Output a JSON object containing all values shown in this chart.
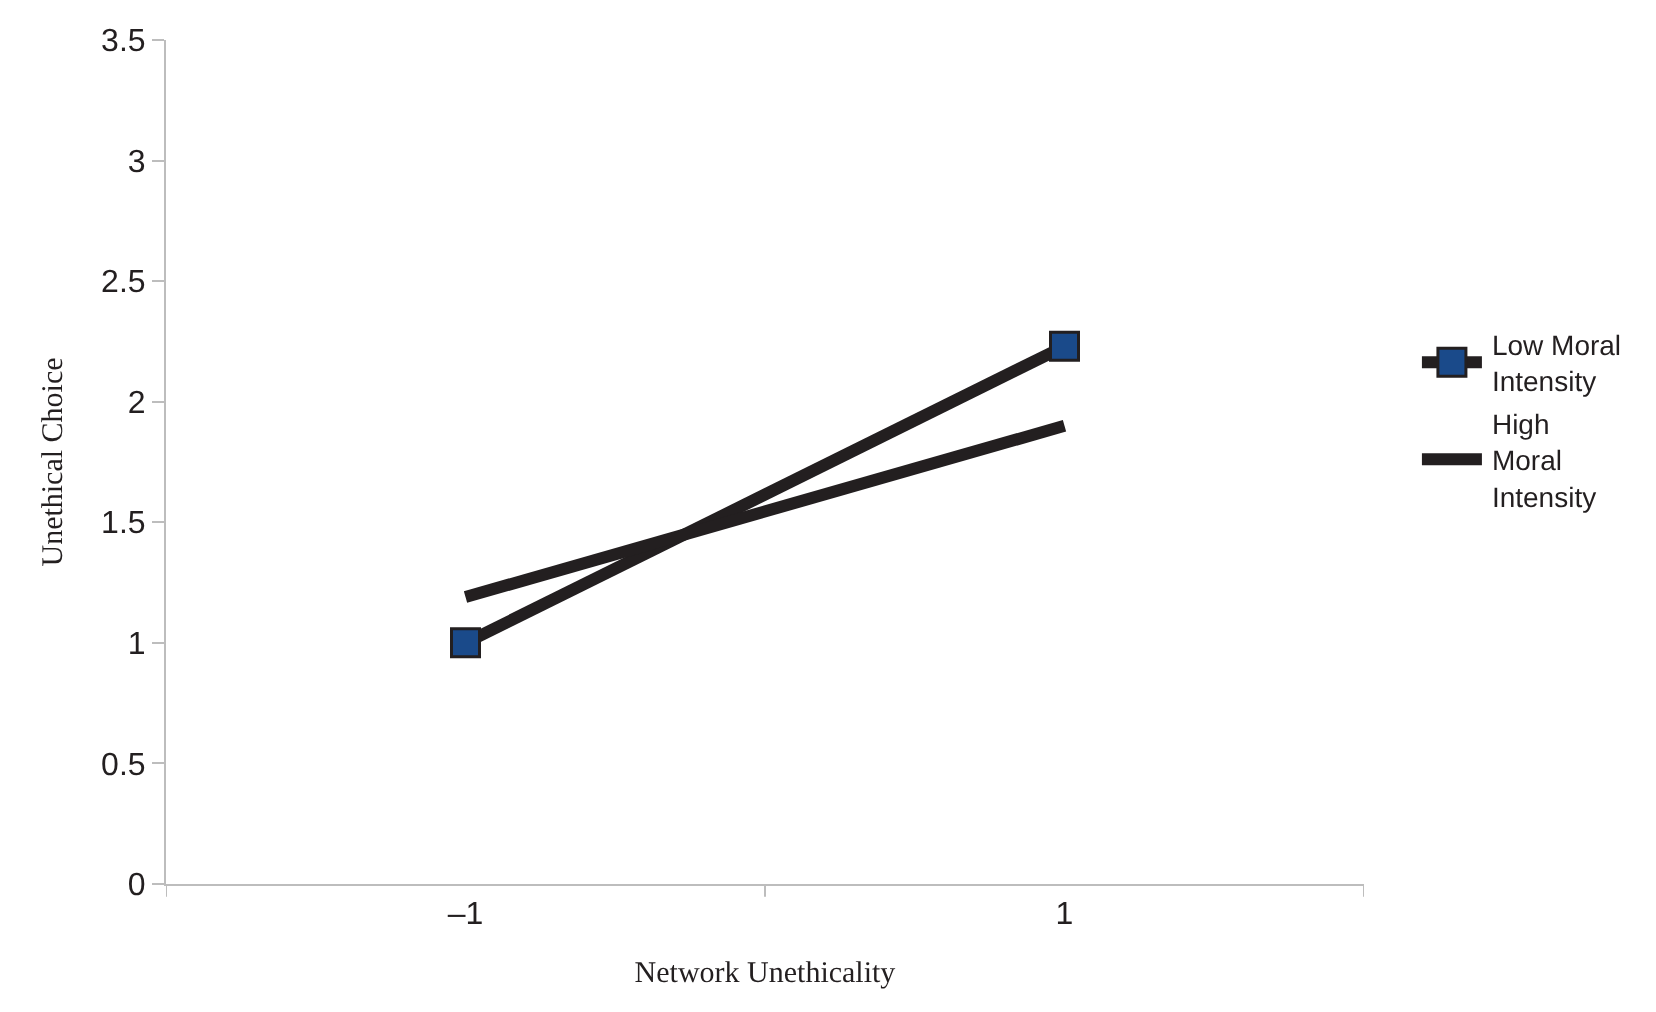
{
  "chart_data": {
    "type": "line",
    "xlabel": "Network Unethicality",
    "ylabel": "Unethical Choice",
    "categories": [
      "–1",
      "1"
    ],
    "series": [
      {
        "name": "Low Moral Intensity",
        "color": "#231f20",
        "marker": "square",
        "colors": [
          "#1a4a8a",
          "#1a4a8a"
        ],
        "values": [
          1.0,
          2.23
        ]
      },
      {
        "name": "High Moral Intensity",
        "color": "#231f20",
        "marker": "none",
        "values": [
          1.19,
          1.9
        ]
      }
    ],
    "ylim": [
      0,
      3.5
    ],
    "yticks": [
      0,
      0.5,
      1,
      1.5,
      2,
      2.5,
      3,
      3.5
    ],
    "legend": "right",
    "line_style": "solid"
  }
}
